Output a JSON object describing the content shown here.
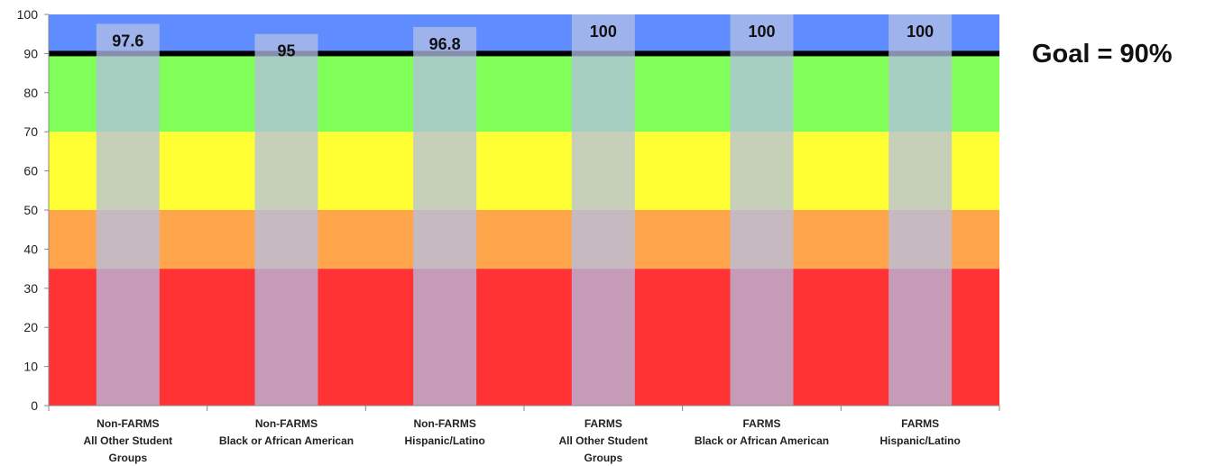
{
  "goal_label": "Goal = 90%",
  "chart_data": {
    "type": "bar",
    "title": "",
    "xlabel": "",
    "ylabel": "",
    "ylim": [
      0,
      100
    ],
    "y_ticks": [
      0,
      10,
      20,
      30,
      40,
      50,
      60,
      70,
      80,
      90,
      100
    ],
    "grid": false,
    "legend": "none",
    "categories": [
      [
        "Non-FARMS",
        "All Other Student",
        "Groups"
      ],
      [
        "Non-FARMS",
        "Black or African American"
      ],
      [
        "Non-FARMS",
        "Hispanic/Latino"
      ],
      [
        "FARMS",
        "All Other Student",
        "Groups"
      ],
      [
        "FARMS",
        "Black or African American"
      ],
      [
        "FARMS",
        "Hispanic/Latino"
      ]
    ],
    "values": [
      97.6,
      95,
      96.8,
      100,
      100,
      100
    ],
    "data_labels": [
      "97.6",
      "95",
      "96.8",
      "100",
      "100",
      "100"
    ],
    "goal_line": 90,
    "background_bands": [
      {
        "from": 0,
        "to": 35,
        "color": "#ff3333"
      },
      {
        "from": 35,
        "to": 50,
        "color": "#ffa64d"
      },
      {
        "from": 50,
        "to": 70,
        "color": "#ffff33"
      },
      {
        "from": 70,
        "to": 90,
        "color": "#80ff59"
      },
      {
        "from": 90,
        "to": 100,
        "color": "#5f8cff"
      }
    ],
    "bar_color": "#b3bfe6",
    "goal_line_color": "#000000"
  }
}
